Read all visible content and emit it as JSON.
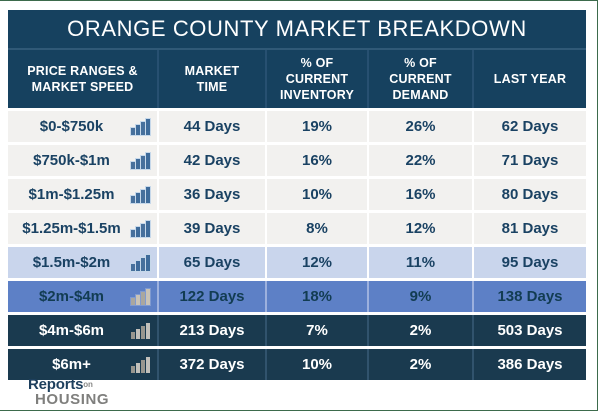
{
  "title": "ORANGE COUNTY MARKET BREAKDOWN",
  "table": {
    "columns": [
      {
        "label": "PRICE RANGES &\nMARKET SPEED"
      },
      {
        "label": "MARKET\nTIME"
      },
      {
        "label": "% OF\nCURRENT\nINVENTORY"
      },
      {
        "label": "% OF\nCURRENT\nDEMAND"
      },
      {
        "label": "LAST YEAR"
      }
    ],
    "rows": [
      {
        "price_range": "$0-$750k",
        "market_time": "44 Days",
        "inventory": "19%",
        "demand": "26%",
        "last_year": "62 Days"
      },
      {
        "price_range": "$750k-$1m",
        "market_time": "42 Days",
        "inventory": "16%",
        "demand": "22%",
        "last_year": "71 Days"
      },
      {
        "price_range": "$1m-$1.25m",
        "market_time": "36 Days",
        "inventory": "10%",
        "demand": "16%",
        "last_year": "80 Days"
      },
      {
        "price_range": "$1.25m-$1.5m",
        "market_time": "39 Days",
        "inventory": "8%",
        "demand": "12%",
        "last_year": "81 Days"
      },
      {
        "price_range": "$1.5m-$2m",
        "market_time": "65 Days",
        "inventory": "12%",
        "demand": "11%",
        "last_year": "95 Days"
      },
      {
        "price_range": "$2m-$4m",
        "market_time": "122 Days",
        "inventory": "18%",
        "demand": "9%",
        "last_year": "138 Days"
      },
      {
        "price_range": "$4m-$6m",
        "market_time": "213 Days",
        "inventory": "7%",
        "demand": "2%",
        "last_year": "503 Days"
      },
      {
        "price_range": "$6m+",
        "market_time": "372 Days",
        "inventory": "10%",
        "demand": "2%",
        "last_year": "386 Days"
      }
    ]
  },
  "chart_data": {
    "type": "table",
    "title": "ORANGE COUNTY MARKET BREAKDOWN",
    "columns": [
      "PRICE RANGES & MARKET SPEED",
      "MARKET TIME",
      "% OF CURRENT INVENTORY",
      "% OF CURRENT DEMAND",
      "LAST YEAR"
    ],
    "rows": [
      [
        "$0-$750k",
        "44 Days",
        "19%",
        "26%",
        "62 Days"
      ],
      [
        "$750k-$1m",
        "42 Days",
        "16%",
        "22%",
        "71 Days"
      ],
      [
        "$1m-$1.25m",
        "36 Days",
        "10%",
        "16%",
        "80 Days"
      ],
      [
        "$1.25m-$1.5m",
        "39 Days",
        "8%",
        "12%",
        "81 Days"
      ],
      [
        "$1.5m-$2m",
        "65 Days",
        "12%",
        "11%",
        "95 Days"
      ],
      [
        "$2m-$4m",
        "122 Days",
        "18%",
        "9%",
        "138 Days"
      ],
      [
        "$4m-$6m",
        "213 Days",
        "7%",
        "2%",
        "503 Days"
      ],
      [
        "$6m+",
        "372 Days",
        "10%",
        "2%",
        "386 Days"
      ]
    ],
    "market_time_days": [
      44,
      42,
      36,
      39,
      65,
      122,
      213,
      372
    ],
    "pct_current_inventory": [
      19,
      16,
      10,
      8,
      12,
      18,
      7,
      10
    ],
    "pct_current_demand": [
      26,
      22,
      16,
      12,
      11,
      9,
      2,
      2
    ],
    "last_year_days": [
      62,
      71,
      80,
      81,
      95,
      138,
      503,
      386
    ]
  },
  "logo": {
    "reports": "Reports",
    "on": "on",
    "housing": "HOUSING"
  },
  "colors": {
    "header_navy": "#16415f",
    "dark_row": "#1a3a4f",
    "medium_blue_row": "#5d80c6",
    "light_blue_row": "#c9d5ec",
    "light_row": "#f2f1ef",
    "row_text_navy": "#1a4263",
    "icon_blue": "#3e6b9a",
    "icon_gray": "#b5b3ae",
    "frame_border_green": "#3d6b4c"
  }
}
